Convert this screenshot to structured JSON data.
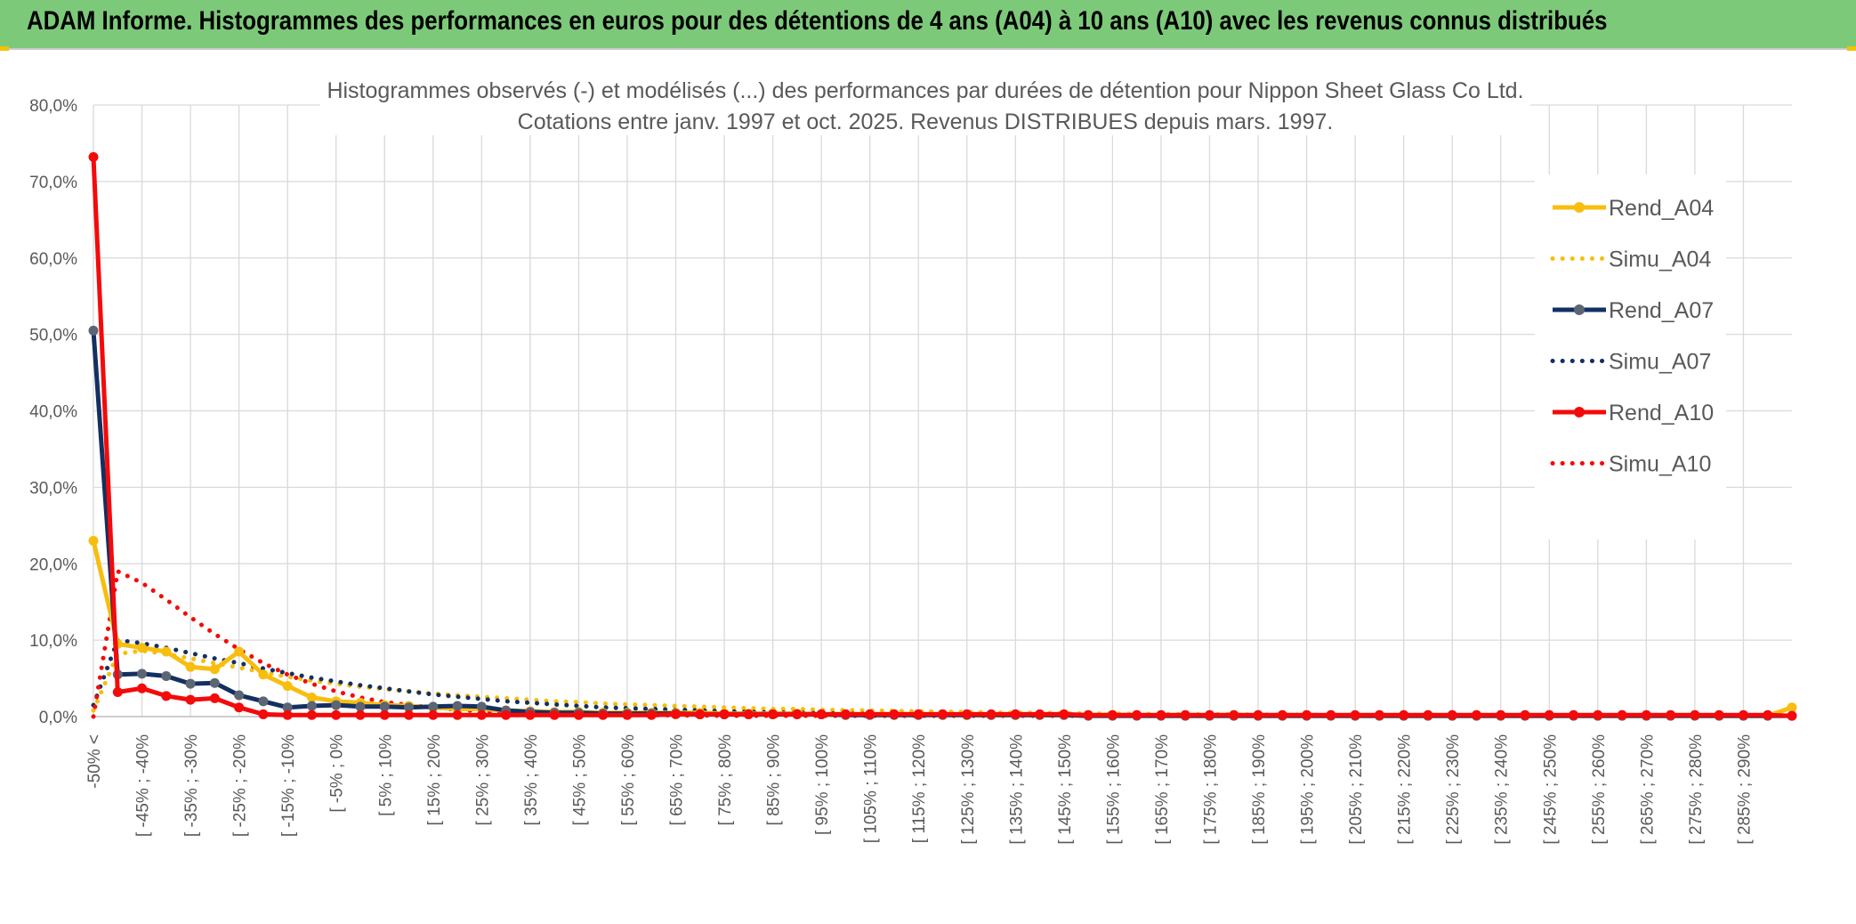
{
  "header": {
    "title": "ADAM Informe. Histogrammes des performances en euros pour des détentions de 4 ans (A04) à 10 ans (A10) avec les revenus connus distribués"
  },
  "colors": {
    "banner": "#7dc97a",
    "a04": "#f7be0f",
    "a07": "#142f62",
    "a07_marker": "#5b6574",
    "a10": "#f40a0a",
    "grid": "#d9d9d9"
  },
  "chart_data": {
    "type": "line",
    "title": "Histogrammes observés (-) et modélisés (...) des performances par durées de détention pour Nippon Sheet Glass Co Ltd.",
    "subtitle": "Cotations entre janv. 1997 et oct. 2025. Revenus DISTRIBUES depuis mars. 1997.",
    "xlabel": "",
    "ylabel": "",
    "ylim": [
      0,
      80
    ],
    "yticks": [
      "0,0%",
      "10,0%",
      "20,0%",
      "30,0%",
      "40,0%",
      "50,0%",
      "60,0%",
      "70,0%",
      "80,0%"
    ],
    "grid": true,
    "legend_position": "right",
    "categories": [
      "-50% <",
      "[ -50% ; -45%",
      "[ -45% ; -40%",
      "[ -40% ; -35%",
      "[ -35% ; -30%",
      "[ -30% ; -25%",
      "[ -25% ; -20%",
      "[ -20% ; -15%",
      "[ -15% ; -10%",
      "[ -10% ; -5%",
      "[ -5% ; 0%",
      "[ 0% ; 5%",
      "[ 5% ; 10%",
      "[ 10% ; 15%",
      "[ 15% ; 20%",
      "[ 20% ; 25%",
      "[ 25% ; 30%",
      "[ 30% ; 35%",
      "[ 35% ; 40%",
      "[ 40% ; 45%",
      "[ 45% ; 50%",
      "[ 50% ; 55%",
      "[ 55% ; 60%",
      "[ 60% ; 65%",
      "[ 65% ; 70%",
      "[ 70% ; 75%",
      "[ 75% ; 80%",
      "[ 80% ; 85%",
      "[ 85% ; 90%",
      "[ 90% ; 95%",
      "[ 95% ; 100%",
      "[ 100% ; 105%",
      "[ 105% ; 110%",
      "[ 110% ; 115%",
      "[ 115% ; 120%",
      "[ 120% ; 125%",
      "[ 125% ; 130%",
      "[ 130% ; 135%",
      "[ 135% ; 140%",
      "[ 140% ; 145%",
      "[ 145% ; 150%",
      "[ 150% ; 155%",
      "[ 155% ; 160%",
      "[ 160% ; 165%",
      "[ 165% ; 170%",
      "[ 170% ; 175%",
      "[ 175% ; 180%",
      "[ 180% ; 185%",
      "[ 185% ; 190%",
      "[ 190% ; 195%",
      "[ 195% ; 200%",
      "[ 200% ; 205%",
      "[ 205% ; 210%",
      "[ 210% ; 215%",
      "[ 215% ; 220%",
      "[ 220% ; 225%",
      "[ 225% ; 230%",
      "[ 230% ; 235%",
      "[ 235% ; 240%",
      "[ 240% ; 245%",
      "[ 245% ; 250%",
      "[ 250% ; 255%",
      "[ 255% ; 260%",
      "[ 260% ; 265%",
      "[ 265% ; 270%",
      "[ 270% ; 275%",
      "[ 275% ; 280%",
      "[ 280% ; 285%",
      "[ 285% ; 290%",
      "[ 290% ; 295%",
      "295% >"
    ],
    "visible_tick_labels": [
      "-50% <",
      "[ -45% ; -40%",
      "[ -35% ; -30%",
      "[ -25% ; -20%",
      "[ -15% ; -10%",
      "[ -5% ; 0%",
      "[ 5% ; 10%",
      "[ 15% ; 20%",
      "[ 25% ; 30%",
      "[ 35% ; 40%",
      "[ 45% ; 50%",
      "[ 55% ; 60%",
      "[ 65% ; 70%",
      "[ 75% ; 80%",
      "[ 85% ; 90%",
      "[ 95% ; 100%",
      "[ 105% ; 110%",
      "[ 115% ; 120%",
      "[ 125% ; 130%",
      "[ 135% ; 140%",
      "[ 145% ; 150%",
      "[ 155% ; 160%",
      "[ 165% ; 170%",
      "[ 175% ; 180%",
      "[ 185% ; 190%",
      "[ 195% ; 200%",
      "[ 205% ; 210%",
      "[ 215% ; 220%",
      "[ 225% ; 230%",
      "[ 235% ; 240%",
      "[ 245% ; 250%",
      "[ 255% ; 260%",
      "[ 265% ; 270%",
      "[ 275% ; 280%",
      "[ 285% ; 290%"
    ],
    "series": [
      {
        "name": "Rend_A04",
        "style": "solid",
        "color": "#f7be0f",
        "values": [
          23.0,
          9.5,
          9.0,
          8.5,
          6.5,
          6.2,
          8.5,
          5.5,
          4.0,
          2.5,
          2.0,
          1.8,
          1.5,
          1.4,
          1.2,
          1.0,
          1.0,
          0.8,
          0.7,
          0.6,
          0.6,
          0.5,
          0.5,
          0.5,
          0.5,
          0.5,
          0.4,
          0.4,
          0.4,
          0.4,
          0.3,
          0.3,
          0.3,
          0.3,
          0.3,
          0.3,
          0.2,
          0.2,
          0.2,
          0.2,
          0.2,
          0.2,
          0.2,
          0.2,
          0.1,
          0.1,
          0.1,
          0.1,
          0.1,
          0.1,
          0.1,
          0.1,
          0.1,
          0.1,
          0.1,
          0.1,
          0.1,
          0.1,
          0.1,
          0.1,
          0.1,
          0.1,
          0.1,
          0.1,
          0.1,
          0.1,
          0.1,
          0.1,
          0.1,
          0.1,
          1.2
        ]
      },
      {
        "name": "Simu_A04",
        "style": "dotted",
        "color": "#f7be0f",
        "values": [
          0.8,
          8.2,
          8.6,
          8.2,
          7.6,
          7.0,
          6.4,
          5.8,
          5.2,
          4.7,
          4.3,
          3.9,
          3.6,
          3.3,
          3.0,
          2.8,
          2.6,
          2.4,
          2.2,
          2.0,
          1.9,
          1.7,
          1.6,
          1.5,
          1.4,
          1.3,
          1.2,
          1.1,
          1.0,
          1.0,
          0.9,
          0.85,
          0.8,
          0.75,
          0.7,
          0.65,
          0.6,
          0.55,
          0.5,
          0.5,
          0.45,
          0.4,
          0.4,
          0.35,
          0.35,
          0.3,
          0.3,
          0.3,
          0.25,
          0.25,
          0.25,
          0.2,
          0.2,
          0.2,
          0.2,
          0.2,
          0.15,
          0.15,
          0.15,
          0.15,
          0.15,
          0.1,
          0.1,
          0.1,
          0.1,
          0.1,
          0.1,
          0.1,
          0.1,
          0.1,
          0.1
        ]
      },
      {
        "name": "Rend_A07",
        "style": "solid",
        "color": "#142f62",
        "values": [
          50.5,
          5.5,
          5.6,
          5.3,
          4.3,
          4.4,
          2.8,
          2.0,
          1.2,
          1.4,
          1.5,
          1.3,
          1.3,
          1.2,
          1.3,
          1.4,
          1.3,
          0.8,
          0.6,
          0.5,
          0.5,
          0.4,
          0.4,
          0.4,
          0.4,
          0.3,
          0.3,
          0.3,
          0.3,
          0.3,
          0.3,
          0.2,
          0.2,
          0.2,
          0.2,
          0.2,
          0.2,
          0.2,
          0.2,
          0.2,
          0.2,
          0.1,
          0.1,
          0.1,
          0.1,
          0.1,
          0.1,
          0.1,
          0.1,
          0.1,
          0.1,
          0.1,
          0.1,
          0.1,
          0.1,
          0.1,
          0.1,
          0.1,
          0.1,
          0.1,
          0.1,
          0.1,
          0.1,
          0.1,
          0.1,
          0.1,
          0.1,
          0.1,
          0.1,
          0.1,
          0.1
        ]
      },
      {
        "name": "Simu_A07",
        "style": "dotted",
        "color": "#142f62",
        "values": [
          1.5,
          10.0,
          9.6,
          9.0,
          8.3,
          7.6,
          7.0,
          6.3,
          5.7,
          5.1,
          4.6,
          4.1,
          3.7,
          3.3,
          2.9,
          2.6,
          2.3,
          2.0,
          1.8,
          1.6,
          1.4,
          1.2,
          1.1,
          1.0,
          0.9,
          0.8,
          0.7,
          0.6,
          0.55,
          0.5,
          0.45,
          0.4,
          0.35,
          0.3,
          0.3,
          0.25,
          0.25,
          0.2,
          0.2,
          0.2,
          0.15,
          0.15,
          0.15,
          0.1,
          0.1,
          0.1,
          0.1,
          0.1,
          0.1,
          0.1,
          0.1,
          0.1,
          0.1,
          0.1,
          0.1,
          0.1,
          0.1,
          0.1,
          0.1,
          0.1,
          0.1,
          0.1,
          0.1,
          0.1,
          0.1,
          0.1,
          0.1,
          0.1,
          0.1,
          0.1,
          0.1
        ]
      },
      {
        "name": "Rend_A10",
        "style": "solid",
        "color": "#f40a0a",
        "values": [
          73.2,
          3.2,
          3.7,
          2.7,
          2.2,
          2.4,
          1.2,
          0.3,
          0.2,
          0.2,
          0.2,
          0.2,
          0.2,
          0.2,
          0.2,
          0.2,
          0.2,
          0.2,
          0.2,
          0.2,
          0.2,
          0.2,
          0.2,
          0.2,
          0.3,
          0.3,
          0.3,
          0.3,
          0.3,
          0.3,
          0.3,
          0.3,
          0.3,
          0.3,
          0.3,
          0.3,
          0.3,
          0.3,
          0.3,
          0.3,
          0.3,
          0.2,
          0.2,
          0.2,
          0.2,
          0.2,
          0.2,
          0.2,
          0.2,
          0.2,
          0.2,
          0.2,
          0.2,
          0.2,
          0.2,
          0.2,
          0.2,
          0.2,
          0.2,
          0.2,
          0.2,
          0.2,
          0.2,
          0.2,
          0.2,
          0.2,
          0.2,
          0.2,
          0.2,
          0.2,
          0.1
        ]
      },
      {
        "name": "Simu_A10",
        "style": "dotted",
        "color": "#f40a0a",
        "values": [
          0.0,
          19.0,
          17.5,
          15.3,
          13.0,
          10.8,
          8.8,
          7.0,
          5.5,
          4.3,
          3.3,
          2.5,
          1.9,
          1.5,
          1.2,
          0.9,
          0.7,
          0.55,
          0.45,
          0.35,
          0.3,
          0.25,
          0.2,
          0.2,
          0.15,
          0.15,
          0.1,
          0.1,
          0.1,
          0.1,
          0.1,
          0.1,
          0.1,
          0.1,
          0.1,
          0.1,
          0.1,
          0.1,
          0.1,
          0.1,
          0.1,
          0.1,
          0.1,
          0.1,
          0.1,
          0.1,
          0.1,
          0.1,
          0.1,
          0.1,
          0.1,
          0.1,
          0.1,
          0.1,
          0.1,
          0.1,
          0.1,
          0.1,
          0.1,
          0.1,
          0.1,
          0.1,
          0.1,
          0.1,
          0.1,
          0.1,
          0.1,
          0.1,
          0.1,
          0.1,
          0.1
        ]
      }
    ]
  }
}
